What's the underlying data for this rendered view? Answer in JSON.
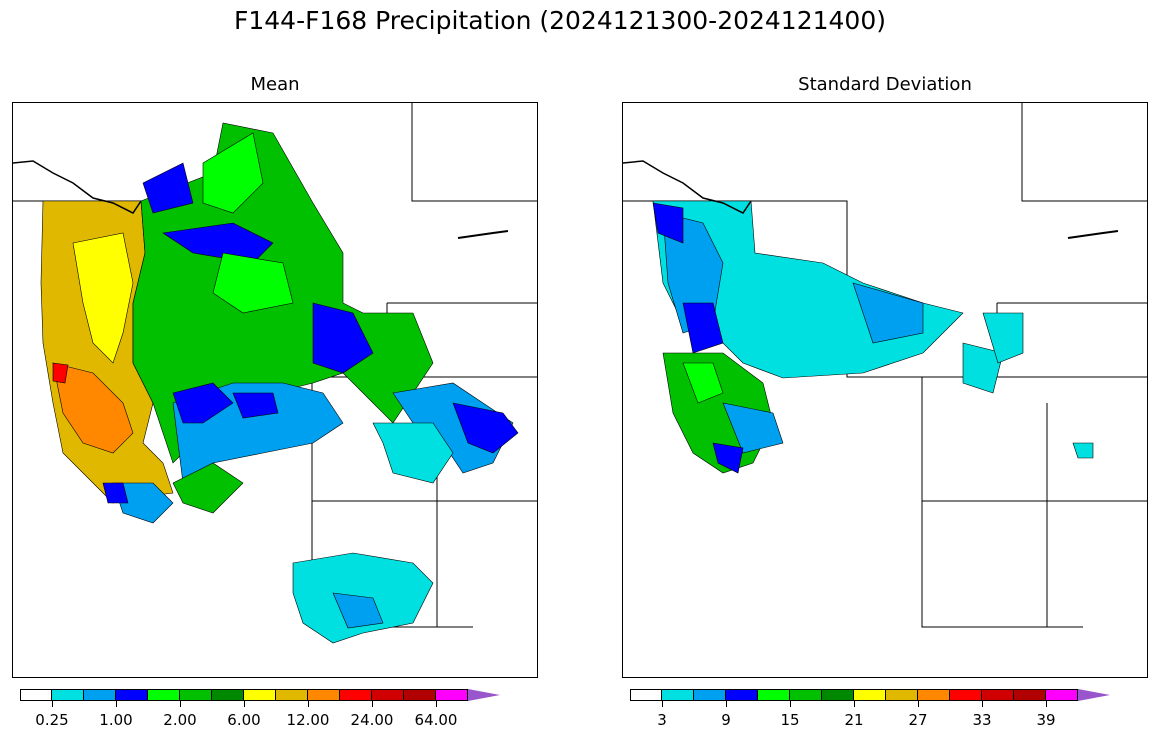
{
  "title": "F144-F168 Precipitation (2024121300-2024121400)",
  "panels": [
    {
      "subtitle": "Mean",
      "colorbar": {
        "colors": [
          "#ffffff",
          "#00e0e0",
          "#00a0f0",
          "#0000ff",
          "#00ff00",
          "#00c000",
          "#008800",
          "#ffff00",
          "#e0b800",
          "#ff8800",
          "#ff0000",
          "#d00000",
          "#b00000",
          "#ff00ff",
          "#9955cc"
        ],
        "tick_labels": [
          "0.25",
          "1.00",
          "2.00",
          "6.00",
          "12.00",
          "24.00",
          "64.00"
        ]
      }
    },
    {
      "subtitle": "Standard Deviation",
      "colorbar": {
        "colors": [
          "#ffffff",
          "#00e0e0",
          "#00a0f0",
          "#0000ff",
          "#00ff00",
          "#00c000",
          "#008800",
          "#ffff00",
          "#e0b800",
          "#ff8800",
          "#ff0000",
          "#d00000",
          "#b00000",
          "#ff00ff",
          "#9955cc"
        ],
        "tick_labels": [
          "3",
          "9",
          "15",
          "21",
          "27",
          "33",
          "39"
        ]
      }
    }
  ]
}
